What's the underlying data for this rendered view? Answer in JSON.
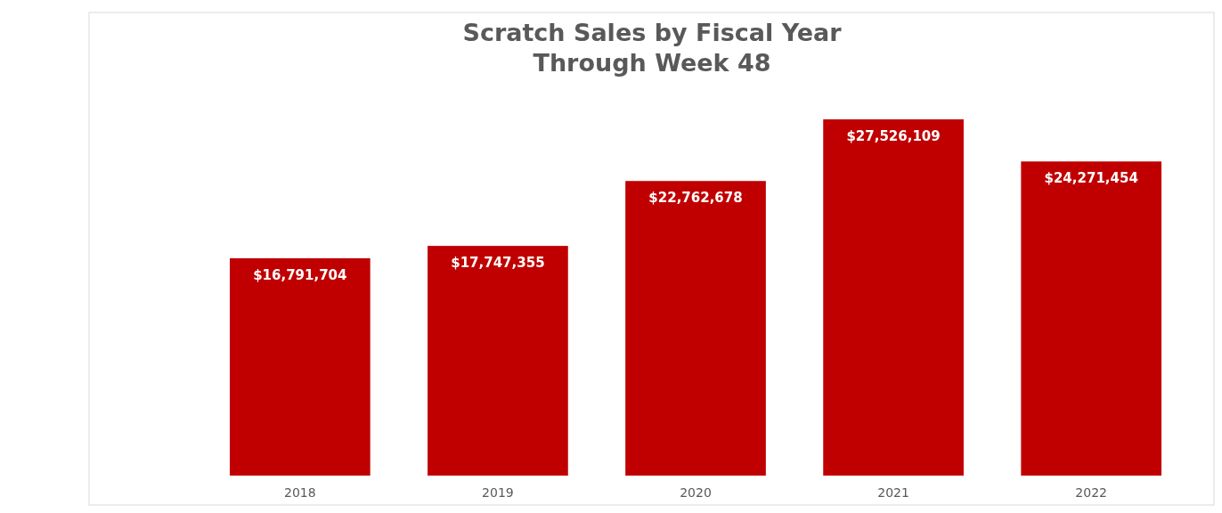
{
  "chart_data": {
    "type": "bar",
    "title": "Scratch Sales by Fiscal Year\nThrough Week 48",
    "categories": [
      "2018",
      "2019",
      "2020",
      "2021",
      "2022"
    ],
    "values": [
      16791704,
      17747355,
      22762678,
      27526109,
      24271454
    ],
    "value_labels": [
      "$16,791,704",
      "$17,747,355",
      "$22,762,678",
      "$27,526,109",
      "$24,271,454"
    ],
    "color": "#c00000",
    "tick_labels": "x"
  }
}
